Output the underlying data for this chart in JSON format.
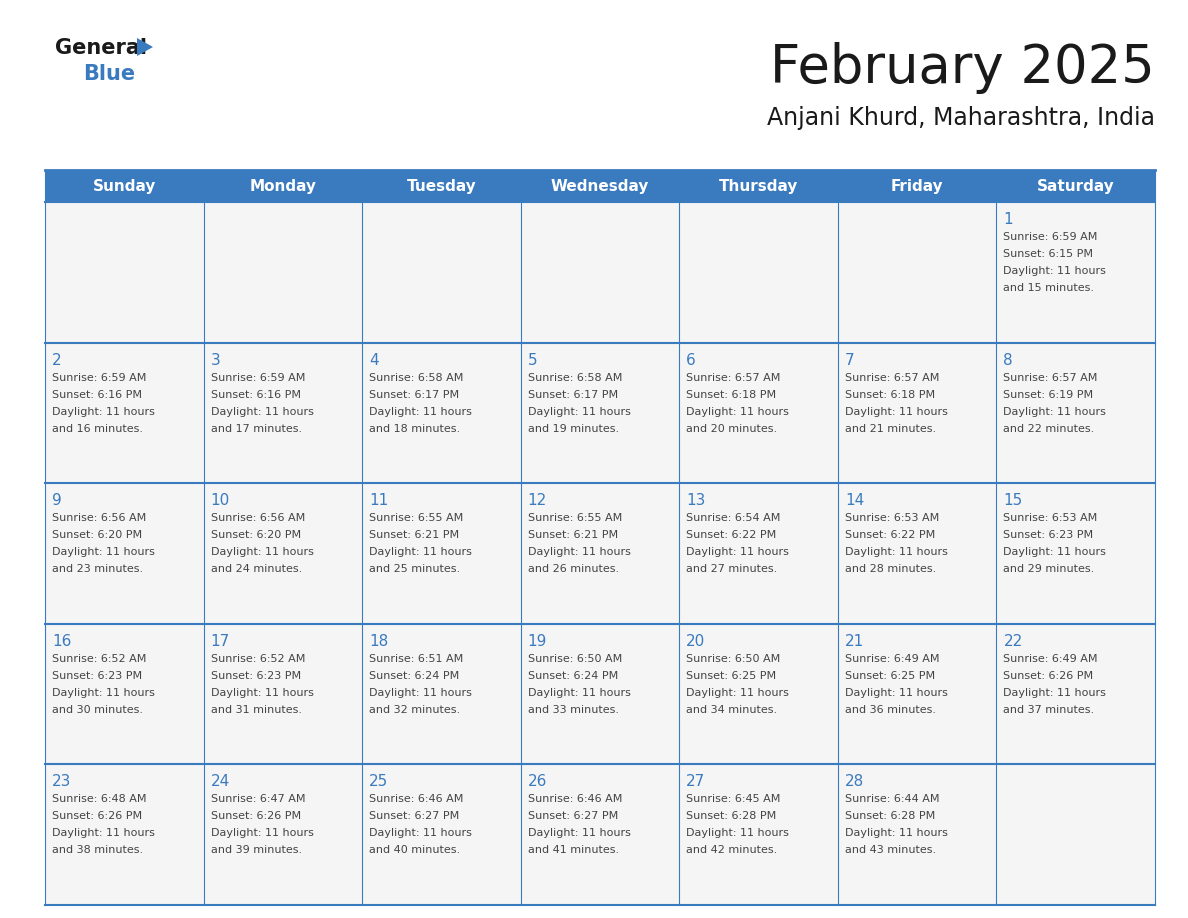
{
  "title": "February 2025",
  "subtitle": "Anjani Khurd, Maharashtra, India",
  "header_bg": "#3a7abf",
  "header_text": "#ffffff",
  "cell_bg": "#f5f5f5",
  "day_number_color": "#3a7abf",
  "text_color": "#444444",
  "border_color": "#3a7abf",
  "logo_general_color": "#1a1a1a",
  "logo_blue_color": "#3a7abf",
  "logo_triangle_color": "#3a7abf",
  "days_of_week": [
    "Sunday",
    "Monday",
    "Tuesday",
    "Wednesday",
    "Thursday",
    "Friday",
    "Saturday"
  ],
  "calendar": [
    [
      null,
      null,
      null,
      null,
      null,
      null,
      1
    ],
    [
      2,
      3,
      4,
      5,
      6,
      7,
      8
    ],
    [
      9,
      10,
      11,
      12,
      13,
      14,
      15
    ],
    [
      16,
      17,
      18,
      19,
      20,
      21,
      22
    ],
    [
      23,
      24,
      25,
      26,
      27,
      28,
      null
    ]
  ],
  "sun_data": {
    "1": {
      "sunrise": "6:59 AM",
      "sunset": "6:15 PM",
      "daylight": "11 hours and 15 minutes."
    },
    "2": {
      "sunrise": "6:59 AM",
      "sunset": "6:16 PM",
      "daylight": "11 hours and 16 minutes."
    },
    "3": {
      "sunrise": "6:59 AM",
      "sunset": "6:16 PM",
      "daylight": "11 hours and 17 minutes."
    },
    "4": {
      "sunrise": "6:58 AM",
      "sunset": "6:17 PM",
      "daylight": "11 hours and 18 minutes."
    },
    "5": {
      "sunrise": "6:58 AM",
      "sunset": "6:17 PM",
      "daylight": "11 hours and 19 minutes."
    },
    "6": {
      "sunrise": "6:57 AM",
      "sunset": "6:18 PM",
      "daylight": "11 hours and 20 minutes."
    },
    "7": {
      "sunrise": "6:57 AM",
      "sunset": "6:18 PM",
      "daylight": "11 hours and 21 minutes."
    },
    "8": {
      "sunrise": "6:57 AM",
      "sunset": "6:19 PM",
      "daylight": "11 hours and 22 minutes."
    },
    "9": {
      "sunrise": "6:56 AM",
      "sunset": "6:20 PM",
      "daylight": "11 hours and 23 minutes."
    },
    "10": {
      "sunrise": "6:56 AM",
      "sunset": "6:20 PM",
      "daylight": "11 hours and 24 minutes."
    },
    "11": {
      "sunrise": "6:55 AM",
      "sunset": "6:21 PM",
      "daylight": "11 hours and 25 minutes."
    },
    "12": {
      "sunrise": "6:55 AM",
      "sunset": "6:21 PM",
      "daylight": "11 hours and 26 minutes."
    },
    "13": {
      "sunrise": "6:54 AM",
      "sunset": "6:22 PM",
      "daylight": "11 hours and 27 minutes."
    },
    "14": {
      "sunrise": "6:53 AM",
      "sunset": "6:22 PM",
      "daylight": "11 hours and 28 minutes."
    },
    "15": {
      "sunrise": "6:53 AM",
      "sunset": "6:23 PM",
      "daylight": "11 hours and 29 minutes."
    },
    "16": {
      "sunrise": "6:52 AM",
      "sunset": "6:23 PM",
      "daylight": "11 hours and 30 minutes."
    },
    "17": {
      "sunrise": "6:52 AM",
      "sunset": "6:23 PM",
      "daylight": "11 hours and 31 minutes."
    },
    "18": {
      "sunrise": "6:51 AM",
      "sunset": "6:24 PM",
      "daylight": "11 hours and 32 minutes."
    },
    "19": {
      "sunrise": "6:50 AM",
      "sunset": "6:24 PM",
      "daylight": "11 hours and 33 minutes."
    },
    "20": {
      "sunrise": "6:50 AM",
      "sunset": "6:25 PM",
      "daylight": "11 hours and 34 minutes."
    },
    "21": {
      "sunrise": "6:49 AM",
      "sunset": "6:25 PM",
      "daylight": "11 hours and 36 minutes."
    },
    "22": {
      "sunrise": "6:49 AM",
      "sunset": "6:26 PM",
      "daylight": "11 hours and 37 minutes."
    },
    "23": {
      "sunrise": "6:48 AM",
      "sunset": "6:26 PM",
      "daylight": "11 hours and 38 minutes."
    },
    "24": {
      "sunrise": "6:47 AM",
      "sunset": "6:26 PM",
      "daylight": "11 hours and 39 minutes."
    },
    "25": {
      "sunrise": "6:46 AM",
      "sunset": "6:27 PM",
      "daylight": "11 hours and 40 minutes."
    },
    "26": {
      "sunrise": "6:46 AM",
      "sunset": "6:27 PM",
      "daylight": "11 hours and 41 minutes."
    },
    "27": {
      "sunrise": "6:45 AM",
      "sunset": "6:28 PM",
      "daylight": "11 hours and 42 minutes."
    },
    "28": {
      "sunrise": "6:44 AM",
      "sunset": "6:28 PM",
      "daylight": "11 hours and 43 minutes."
    }
  }
}
